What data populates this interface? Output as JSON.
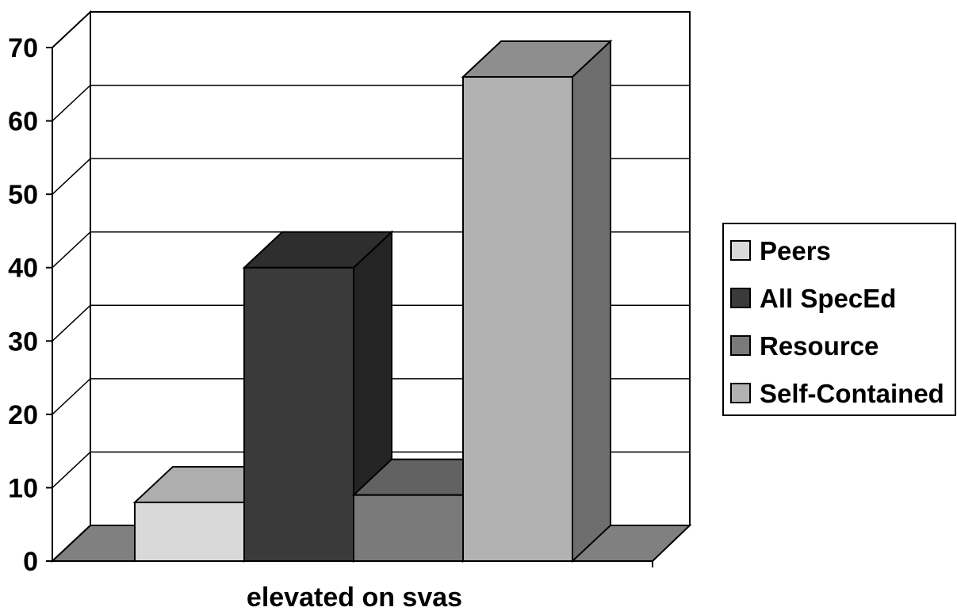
{
  "chart_data": {
    "type": "bar",
    "categories": [
      "elevated on svas"
    ],
    "xlabel": "elevated on svas",
    "ylim": [
      0,
      70
    ],
    "yticks": [
      0,
      10,
      20,
      30,
      40,
      50,
      60,
      70
    ],
    "grid": true,
    "legend_position": "right",
    "three_d": true,
    "series": [
      {
        "name": "Peers",
        "values": [
          8
        ],
        "color": "#d9d9d9"
      },
      {
        "name": "All SpecEd",
        "values": [
          40
        ],
        "color": "#3a3a3a"
      },
      {
        "name": "Resource",
        "values": [
          9
        ],
        "color": "#7a7a7a"
      },
      {
        "name": "Self-Contained",
        "values": [
          66
        ],
        "color": "#b2b2b2"
      }
    ]
  }
}
